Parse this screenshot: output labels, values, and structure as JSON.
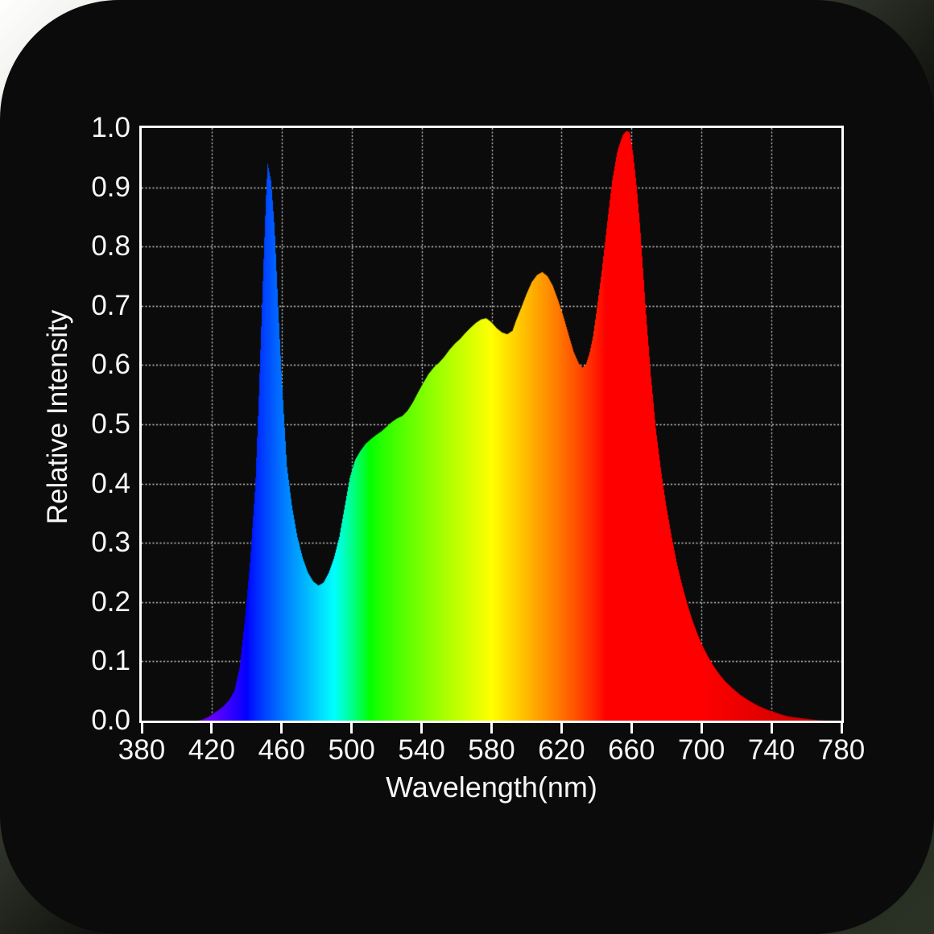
{
  "page": {
    "card_background": "#0b0b0b",
    "page_corner_light": "#ffffff",
    "page_corner_dark": "#2a3326"
  },
  "theme": {
    "plot_border_color": "#ffffff",
    "grid_color": "rgba(255,255,255,0.8)",
    "label_color": "#f7f7f7"
  },
  "chart_data": {
    "type": "area",
    "title": "",
    "xlabel": "Wavelength(nm)",
    "ylabel": "Relative Intensity",
    "xlim": [
      380,
      780
    ],
    "ylim": [
      0.0,
      1.0
    ],
    "grid": true,
    "legend": "none",
    "x_ticks": [
      380,
      420,
      460,
      500,
      540,
      580,
      620,
      660,
      700,
      740,
      780
    ],
    "y_ticks": [
      "0.0",
      "0.1",
      "0.2",
      "0.3",
      "0.4",
      "0.5",
      "0.6",
      "0.7",
      "0.8",
      "0.9",
      "1.0"
    ],
    "color_encoding": "fill is the visible-light spectrum gradient mapped to wavelength (violet-blue 420nm, blue 450nm, cyan 490nm, green 520-540nm, yellow 575nm, orange 610nm, red 640-740nm)",
    "features": {
      "blue_peak": {
        "wavelength": 452,
        "intensity": 0.94
      },
      "blue_green_valley": {
        "wavelength": 481,
        "intensity": 0.23
      },
      "green_shoulder": {
        "wavelength": 528,
        "intensity": 0.51
      },
      "yellow_peak": {
        "wavelength": 577,
        "intensity": 0.68
      },
      "yellow_orange_dip": {
        "wavelength": 589,
        "intensity": 0.65
      },
      "orange_peak": {
        "wavelength": 609,
        "intensity": 0.755
      },
      "orange_red_dip": {
        "wavelength": 632,
        "intensity": 0.6
      },
      "red_peak": {
        "wavelength": 658,
        "intensity": 1.0
      },
      "spectrum_start": 416,
      "spectrum_end": 745
    },
    "series": [
      {
        "name": "relative-intensity-spectrum",
        "points": [
          [
            380,
            0
          ],
          [
            412,
            0
          ],
          [
            415,
            0.002
          ],
          [
            418,
            0.006
          ],
          [
            421,
            0.012
          ],
          [
            424,
            0.018
          ],
          [
            427,
            0.025
          ],
          [
            430,
            0.035
          ],
          [
            433,
            0.05
          ],
          [
            436,
            0.09
          ],
          [
            439,
            0.17
          ],
          [
            442,
            0.27
          ],
          [
            445,
            0.4
          ],
          [
            447,
            0.55
          ],
          [
            449,
            0.72
          ],
          [
            451,
            0.88
          ],
          [
            452,
            0.94
          ],
          [
            454,
            0.91
          ],
          [
            456,
            0.83
          ],
          [
            458,
            0.7
          ],
          [
            460,
            0.58
          ],
          [
            463,
            0.43
          ],
          [
            466,
            0.36
          ],
          [
            469,
            0.31
          ],
          [
            472,
            0.275
          ],
          [
            475,
            0.25
          ],
          [
            478,
            0.235
          ],
          [
            481,
            0.228
          ],
          [
            484,
            0.233
          ],
          [
            487,
            0.25
          ],
          [
            490,
            0.275
          ],
          [
            493,
            0.31
          ],
          [
            496,
            0.36
          ],
          [
            499,
            0.41
          ],
          [
            502,
            0.44
          ],
          [
            505,
            0.455
          ],
          [
            508,
            0.467
          ],
          [
            511,
            0.475
          ],
          [
            514,
            0.482
          ],
          [
            517,
            0.488
          ],
          [
            520,
            0.496
          ],
          [
            523,
            0.504
          ],
          [
            526,
            0.51
          ],
          [
            529,
            0.514
          ],
          [
            532,
            0.523
          ],
          [
            535,
            0.537
          ],
          [
            538,
            0.554
          ],
          [
            541,
            0.57
          ],
          [
            544,
            0.585
          ],
          [
            547,
            0.596
          ],
          [
            550,
            0.604
          ],
          [
            553,
            0.614
          ],
          [
            556,
            0.626
          ],
          [
            559,
            0.636
          ],
          [
            562,
            0.644
          ],
          [
            565,
            0.654
          ],
          [
            568,
            0.663
          ],
          [
            571,
            0.671
          ],
          [
            574,
            0.677
          ],
          [
            577,
            0.679
          ],
          [
            580,
            0.672
          ],
          [
            583,
            0.662
          ],
          [
            586,
            0.655
          ],
          [
            589,
            0.652
          ],
          [
            592,
            0.658
          ],
          [
            594,
            0.675
          ],
          [
            597,
            0.697
          ],
          [
            600,
            0.72
          ],
          [
            603,
            0.74
          ],
          [
            606,
            0.752
          ],
          [
            609,
            0.757
          ],
          [
            612,
            0.75
          ],
          [
            615,
            0.734
          ],
          [
            618,
            0.71
          ],
          [
            621,
            0.683
          ],
          [
            624,
            0.652
          ],
          [
            627,
            0.622
          ],
          [
            630,
            0.602
          ],
          [
            632,
            0.596
          ],
          [
            634,
            0.601
          ],
          [
            636,
            0.62
          ],
          [
            638,
            0.648
          ],
          [
            640,
            0.69
          ],
          [
            643,
            0.758
          ],
          [
            646,
            0.836
          ],
          [
            649,
            0.912
          ],
          [
            652,
            0.962
          ],
          [
            655,
            0.988
          ],
          [
            657,
            0.995
          ],
          [
            659,
            0.993
          ],
          [
            661,
            0.955
          ],
          [
            663,
            0.9
          ],
          [
            665,
            0.83
          ],
          [
            668,
            0.7
          ],
          [
            671,
            0.585
          ],
          [
            674,
            0.49
          ],
          [
            677,
            0.42
          ],
          [
            680,
            0.36
          ],
          [
            683,
            0.31
          ],
          [
            686,
            0.265
          ],
          [
            689,
            0.228
          ],
          [
            692,
            0.196
          ],
          [
            695,
            0.168
          ],
          [
            698,
            0.144
          ],
          [
            701,
            0.124
          ],
          [
            704,
            0.107
          ],
          [
            707,
            0.092
          ],
          [
            710,
            0.079
          ],
          [
            714,
            0.065
          ],
          [
            718,
            0.054
          ],
          [
            722,
            0.044
          ],
          [
            726,
            0.036
          ],
          [
            730,
            0.029
          ],
          [
            734,
            0.023
          ],
          [
            738,
            0.018
          ],
          [
            742,
            0.014
          ],
          [
            746,
            0.01
          ],
          [
            750,
            0.007
          ],
          [
            755,
            0.005
          ],
          [
            760,
            0.003
          ],
          [
            766,
            0.001
          ],
          [
            772,
            0
          ],
          [
            780,
            0
          ]
        ]
      }
    ]
  }
}
